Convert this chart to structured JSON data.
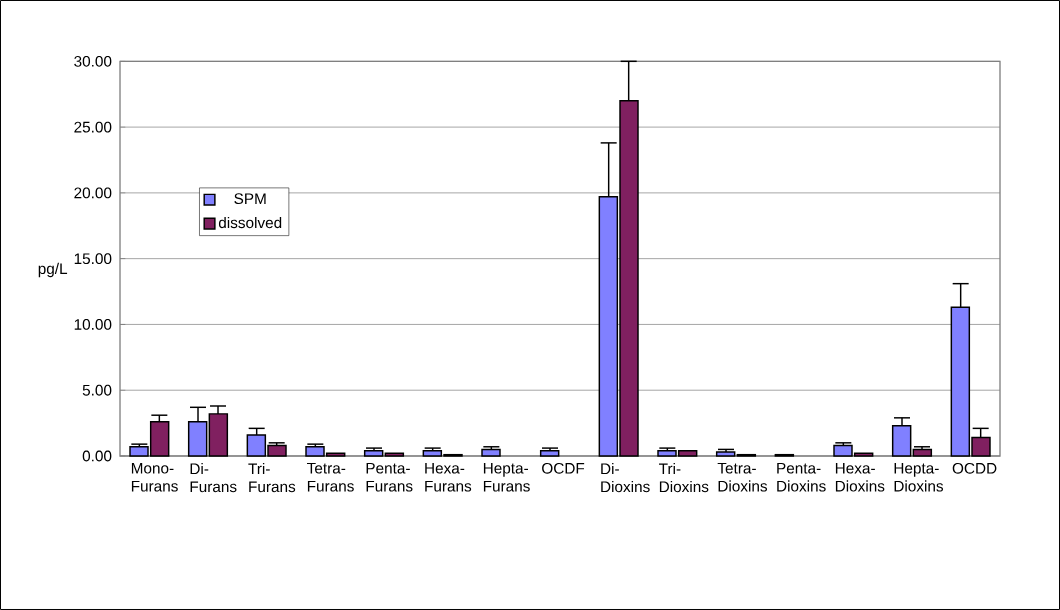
{
  "chart_data": {
    "type": "bar",
    "ylabel": "pg/L",
    "categories": [
      "Mono-Furans",
      "Di-Furans",
      "Tri-Furans",
      "Tetra-Furans",
      "Penta-Furans",
      "Hexa-Furans",
      "Hepta-Furans",
      "OCDF",
      "Di-Dioxins",
      "Tri-Dioxins",
      "Tetra-Dioxins",
      "Penta-Dioxins",
      "Hexa-Dioxins",
      "Hepta-Dioxins",
      "OCDD"
    ],
    "series": [
      {
        "name": "SPM",
        "color": "#8080ff",
        "values": [
          0.7,
          2.6,
          1.6,
          0.7,
          0.4,
          0.4,
          0.5,
          0.4,
          19.7,
          0.4,
          0.3,
          0.1,
          0.8,
          2.3,
          11.3
        ],
        "errors": [
          0.2,
          1.1,
          0.5,
          0.2,
          0.2,
          0.2,
          0.2,
          0.2,
          4.1,
          0.2,
          0.2,
          null,
          0.2,
          0.6,
          1.8
        ]
      },
      {
        "name": "dissolved",
        "color": "#802060",
        "values": [
          2.6,
          3.2,
          0.8,
          0.2,
          0.2,
          0.1,
          null,
          null,
          27.0,
          0.4,
          0.1,
          null,
          0.2,
          0.5,
          1.4
        ],
        "errors": [
          0.5,
          0.6,
          0.2,
          null,
          null,
          null,
          null,
          null,
          3.0,
          null,
          null,
          null,
          null,
          0.2,
          0.7
        ]
      }
    ],
    "ylim": [
      0,
      30
    ],
    "yticks": [
      {
        "value": 0,
        "label": "0.00"
      },
      {
        "value": 5,
        "label": "5.00"
      },
      {
        "value": 10,
        "label": "10.00"
      },
      {
        "value": 15,
        "label": "15.00"
      },
      {
        "value": 20,
        "label": "20.00"
      },
      {
        "value": 25,
        "label": "25.00"
      },
      {
        "value": 30,
        "label": "30.00"
      }
    ],
    "grid": "y",
    "legend": "left"
  }
}
